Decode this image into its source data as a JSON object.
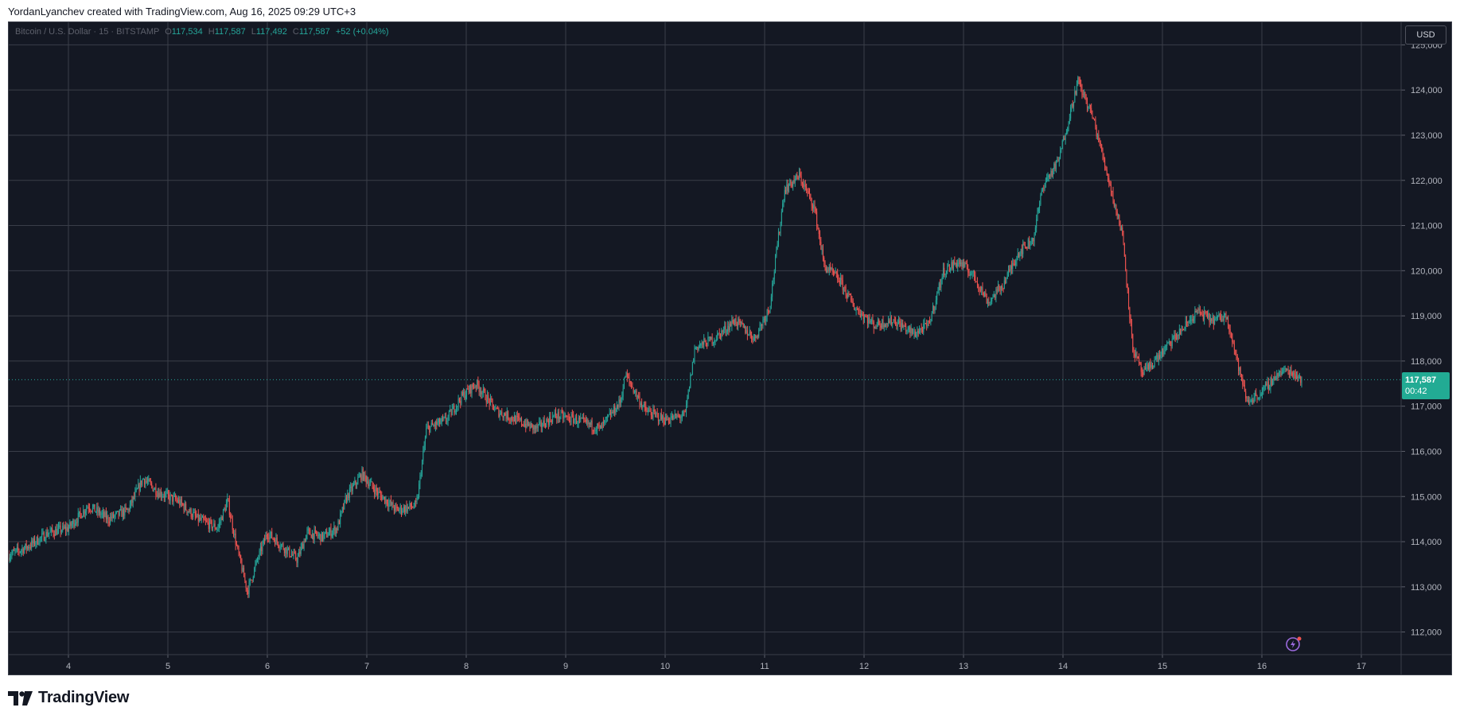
{
  "caption": "YordanLyanchev created with TradingView.com, Aug 16, 2025 09:29 UTC+3",
  "legend": {
    "symbol": "Bitcoin / U.S. Dollar · 15 · BITSTAMP",
    "open_label": "O",
    "open": "117,534",
    "high_label": "H",
    "high": "117,587",
    "low_label": "L",
    "low": "117,492",
    "close_label": "C",
    "close": "117,587",
    "change": "+52 (+0.04%)"
  },
  "currency_button": "USD",
  "last_price": {
    "price": "117,587",
    "countdown": "00:42"
  },
  "logo_text": "TradingView",
  "colors": {
    "background": "#141823",
    "grid": "#3a3e49",
    "up": "#26a69a",
    "down": "#ef5350",
    "price_tag": "#22ab94"
  },
  "icons": {
    "logo": "tradingview-logo-icon",
    "indicator": "lightning-icon"
  },
  "chart_data": {
    "type": "candlestick",
    "timeframe": "15",
    "x_ticks": [
      "4",
      "5",
      "6",
      "7",
      "8",
      "9",
      "10",
      "11",
      "12",
      "13",
      "14",
      "15",
      "16",
      "17"
    ],
    "y_ticks": [
      "112,000",
      "113,000",
      "114,000",
      "115,000",
      "116,000",
      "117,000",
      "118,000",
      "119,000",
      "120,000",
      "121,000",
      "122,000",
      "123,000",
      "124,000",
      "125,000"
    ],
    "ylim": [
      111500,
      125500
    ],
    "xlim": [
      3.4,
      17.4
    ],
    "grid": true,
    "last_price": 117587,
    "price_path": [
      [
        3.4,
        113700
      ],
      [
        3.6,
        113900
      ],
      [
        3.8,
        114200
      ],
      [
        4.0,
        114300
      ],
      [
        4.2,
        114800
      ],
      [
        4.4,
        114500
      ],
      [
        4.6,
        114700
      ],
      [
        4.75,
        115400
      ],
      [
        4.9,
        115100
      ],
      [
        5.1,
        114900
      ],
      [
        5.3,
        114500
      ],
      [
        5.5,
        114300
      ],
      [
        5.6,
        114900
      ],
      [
        5.7,
        113800
      ],
      [
        5.8,
        112900
      ],
      [
        5.9,
        113600
      ],
      [
        6.0,
        114200
      ],
      [
        6.15,
        113900
      ],
      [
        6.3,
        113600
      ],
      [
        6.4,
        114200
      ],
      [
        6.55,
        114100
      ],
      [
        6.7,
        114300
      ],
      [
        6.8,
        115000
      ],
      [
        6.95,
        115500
      ],
      [
        7.1,
        115100
      ],
      [
        7.3,
        114700
      ],
      [
        7.5,
        114800
      ],
      [
        7.6,
        116500
      ],
      [
        7.8,
        116700
      ],
      [
        7.95,
        117200
      ],
      [
        8.1,
        117500
      ],
      [
        8.3,
        116900
      ],
      [
        8.5,
        116700
      ],
      [
        8.7,
        116500
      ],
      [
        8.9,
        116800
      ],
      [
        9.1,
        116700
      ],
      [
        9.35,
        116500
      ],
      [
        9.55,
        117100
      ],
      [
        9.6,
        117700
      ],
      [
        9.8,
        116900
      ],
      [
        10.0,
        116700
      ],
      [
        10.2,
        116800
      ],
      [
        10.3,
        118300
      ],
      [
        10.5,
        118500
      ],
      [
        10.7,
        118900
      ],
      [
        10.9,
        118500
      ],
      [
        11.05,
        119200
      ],
      [
        11.2,
        121800
      ],
      [
        11.35,
        122100
      ],
      [
        11.5,
        121400
      ],
      [
        11.6,
        120100
      ],
      [
        11.75,
        119800
      ],
      [
        11.9,
        119200
      ],
      [
        12.1,
        118800
      ],
      [
        12.3,
        118900
      ],
      [
        12.5,
        118600
      ],
      [
        12.65,
        118800
      ],
      [
        12.8,
        120000
      ],
      [
        12.95,
        120200
      ],
      [
        13.1,
        119900
      ],
      [
        13.25,
        119300
      ],
      [
        13.4,
        119700
      ],
      [
        13.55,
        120400
      ],
      [
        13.7,
        120700
      ],
      [
        13.8,
        121900
      ],
      [
        13.95,
        122400
      ],
      [
        14.05,
        123300
      ],
      [
        14.15,
        124200
      ],
      [
        14.3,
        123400
      ],
      [
        14.45,
        122100
      ],
      [
        14.55,
        121200
      ],
      [
        14.6,
        120800
      ],
      [
        14.7,
        118300
      ],
      [
        14.8,
        117700
      ],
      [
        15.0,
        118200
      ],
      [
        15.2,
        118700
      ],
      [
        15.35,
        119100
      ],
      [
        15.5,
        118900
      ],
      [
        15.65,
        119000
      ],
      [
        15.75,
        118000
      ],
      [
        15.85,
        117100
      ],
      [
        16.0,
        117300
      ],
      [
        16.15,
        117700
      ],
      [
        16.25,
        117800
      ],
      [
        16.35,
        117700
      ],
      [
        16.4,
        117587
      ]
    ]
  }
}
